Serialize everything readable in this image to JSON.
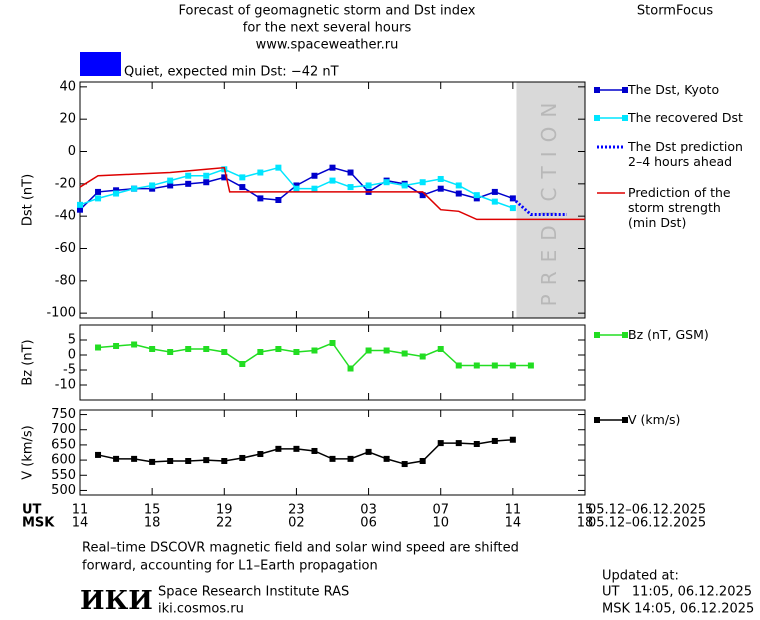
{
  "header": {
    "title_lines": [
      "Forecast of geomagnetic storm and Dst index",
      "for the next several hours",
      "www.spaceweather.ru"
    ],
    "brand": "StormFocus"
  },
  "status": {
    "label": "Quiet, expected min Dst: −42 nT",
    "color": "#0000ff"
  },
  "chart_data": [
    {
      "type": "line",
      "y_label": "Dst (nT)",
      "xlim": [
        0,
        28
      ],
      "xticks": [
        0,
        4,
        8,
        12,
        16,
        20,
        24,
        28
      ],
      "ylim": [
        -103,
        43
      ],
      "yticks": [
        40,
        20,
        0,
        -20,
        -40,
        -60,
        -80,
        -100
      ],
      "prediction_region": {
        "label": "PREDICTION",
        "xlim": [
          24.2,
          28
        ],
        "color": "#d9d9d9"
      },
      "series": [
        {
          "name": "The Dst, Kyoto",
          "color": "#0000cc",
          "marker": "square",
          "dash": false,
          "x": [
            0,
            1,
            2,
            3,
            4,
            5,
            6,
            7,
            8,
            9,
            10,
            11,
            12,
            13,
            14,
            15,
            16,
            17,
            18,
            19,
            20,
            21,
            22,
            23,
            24
          ],
          "values": [
            -36,
            -25,
            -24,
            -23,
            -23,
            -21,
            -20,
            -19,
            -16,
            -22,
            -29,
            -30,
            -21,
            -15,
            -10,
            -13,
            -25,
            -18,
            -20,
            -27,
            -23,
            -26,
            -29,
            -25,
            -29
          ]
        },
        {
          "name": "The recovered Dst",
          "color": "#00e5ff",
          "marker": "square",
          "dash": false,
          "x": [
            0,
            1,
            2,
            3,
            4,
            5,
            6,
            7,
            8,
            9,
            10,
            11,
            12,
            13,
            14,
            15,
            16,
            17,
            18,
            19,
            20,
            21,
            22,
            23,
            24
          ],
          "values": [
            -33,
            -29,
            -26,
            -23,
            -21,
            -18,
            -15,
            -15,
            -11,
            -16,
            -13,
            -10,
            -23,
            -23,
            -18,
            -22,
            -21,
            -19,
            -21,
            -19,
            -17,
            -21,
            -27,
            -31,
            -35
          ]
        },
        {
          "name": "The Dst prediction\n2–4 hours ahead",
          "color": "#0000ff",
          "marker": "none",
          "dash": true,
          "x": [
            24,
            25,
            26,
            27
          ],
          "values": [
            -29,
            -39,
            -39,
            -39
          ]
        },
        {
          "name": "Prediction of the\nstorm strength\n(min Dst)",
          "color": "#dd0000",
          "marker": "none",
          "dash": false,
          "x": [
            0,
            1,
            3,
            5,
            7,
            8,
            8.3,
            19,
            20,
            21,
            22,
            28
          ],
          "values": [
            -22,
            -15,
            -14,
            -13,
            -11,
            -10,
            -25,
            -25,
            -36,
            -37,
            -42,
            -42
          ]
        }
      ]
    },
    {
      "type": "line",
      "y_label": "Bz (nT)",
      "xlim": [
        0,
        28
      ],
      "xticks": [
        0,
        4,
        8,
        12,
        16,
        20,
        24,
        28
      ],
      "ylim": [
        -15,
        10
      ],
      "yticks": [
        5,
        0,
        -5,
        -10
      ],
      "series": [
        {
          "name": "Bz (nT, GSM)",
          "color": "#22dd22",
          "marker": "square",
          "dash": false,
          "x": [
            1,
            2,
            3,
            4,
            5,
            6,
            7,
            8,
            9,
            10,
            11,
            12,
            13,
            14,
            15,
            16,
            17,
            18,
            19,
            20,
            21,
            22,
            23,
            24,
            25
          ],
          "values": [
            2.5,
            3,
            3.5,
            2,
            1,
            2,
            2,
            1,
            -3,
            1,
            2,
            1,
            1.5,
            4,
            -4.5,
            1.5,
            1.5,
            0.5,
            -0.5,
            2,
            -3.5,
            -3.5,
            -3.5,
            -3.5,
            -3.5
          ]
        }
      ]
    },
    {
      "type": "line",
      "y_label": "V (km/s)",
      "xlim": [
        0,
        28
      ],
      "xticks": [
        0,
        4,
        8,
        12,
        16,
        20,
        24,
        28
      ],
      "ylim": [
        485,
        765
      ],
      "yticks": [
        750,
        700,
        650,
        600,
        550,
        500
      ],
      "series": [
        {
          "name": "V (km/s)",
          "color": "#000000",
          "marker": "square",
          "dash": false,
          "x": [
            1,
            2,
            3,
            4,
            5,
            6,
            7,
            8,
            9,
            10,
            11,
            12,
            13,
            14,
            15,
            16,
            17,
            18,
            19,
            20,
            21,
            22,
            23,
            24
          ],
          "values": [
            617,
            604,
            604,
            594,
            597,
            597,
            600,
            597,
            607,
            620,
            637,
            637,
            630,
            604,
            604,
            627,
            604,
            587,
            597,
            656,
            656,
            653,
            663,
            667
          ]
        }
      ]
    }
  ],
  "time_axis": {
    "ut_label": "UT",
    "msk_label": "MSK",
    "ut_ticks": [
      {
        "value": 0,
        "label": "11"
      },
      {
        "value": 4,
        "label": "15"
      },
      {
        "value": 8,
        "label": "19"
      },
      {
        "value": 12,
        "label": "23"
      },
      {
        "value": 16,
        "label": "03"
      },
      {
        "value": 20,
        "label": "07"
      },
      {
        "value": 24,
        "label": "11"
      },
      {
        "value": 28,
        "label": "15"
      }
    ],
    "msk_ticks": [
      {
        "value": 0,
        "label": "14"
      },
      {
        "value": 4,
        "label": "18"
      },
      {
        "value": 8,
        "label": "22"
      },
      {
        "value": 12,
        "label": "02"
      },
      {
        "value": 16,
        "label": "06"
      },
      {
        "value": 20,
        "label": "10"
      },
      {
        "value": 24,
        "label": "14"
      },
      {
        "value": 28,
        "label": "18"
      }
    ],
    "ut_range": "05.12–06.12.2025",
    "msk_range": "05.12–06.12.2025"
  },
  "footer": {
    "note_lines": [
      "Real–time DSCOVR magnetic field and solar wind speed are shifted",
      "forward, accounting for L1–Earth propagation"
    ],
    "logo": "ИКИ",
    "org": "Space Research Institute RAS",
    "site": "iki.cosmos.ru",
    "updated_label": "Updated at:",
    "updated_ut": "UT   11:05, 06.12.2025",
    "updated_msk": "MSK 14:05, 06.12.2025"
  }
}
